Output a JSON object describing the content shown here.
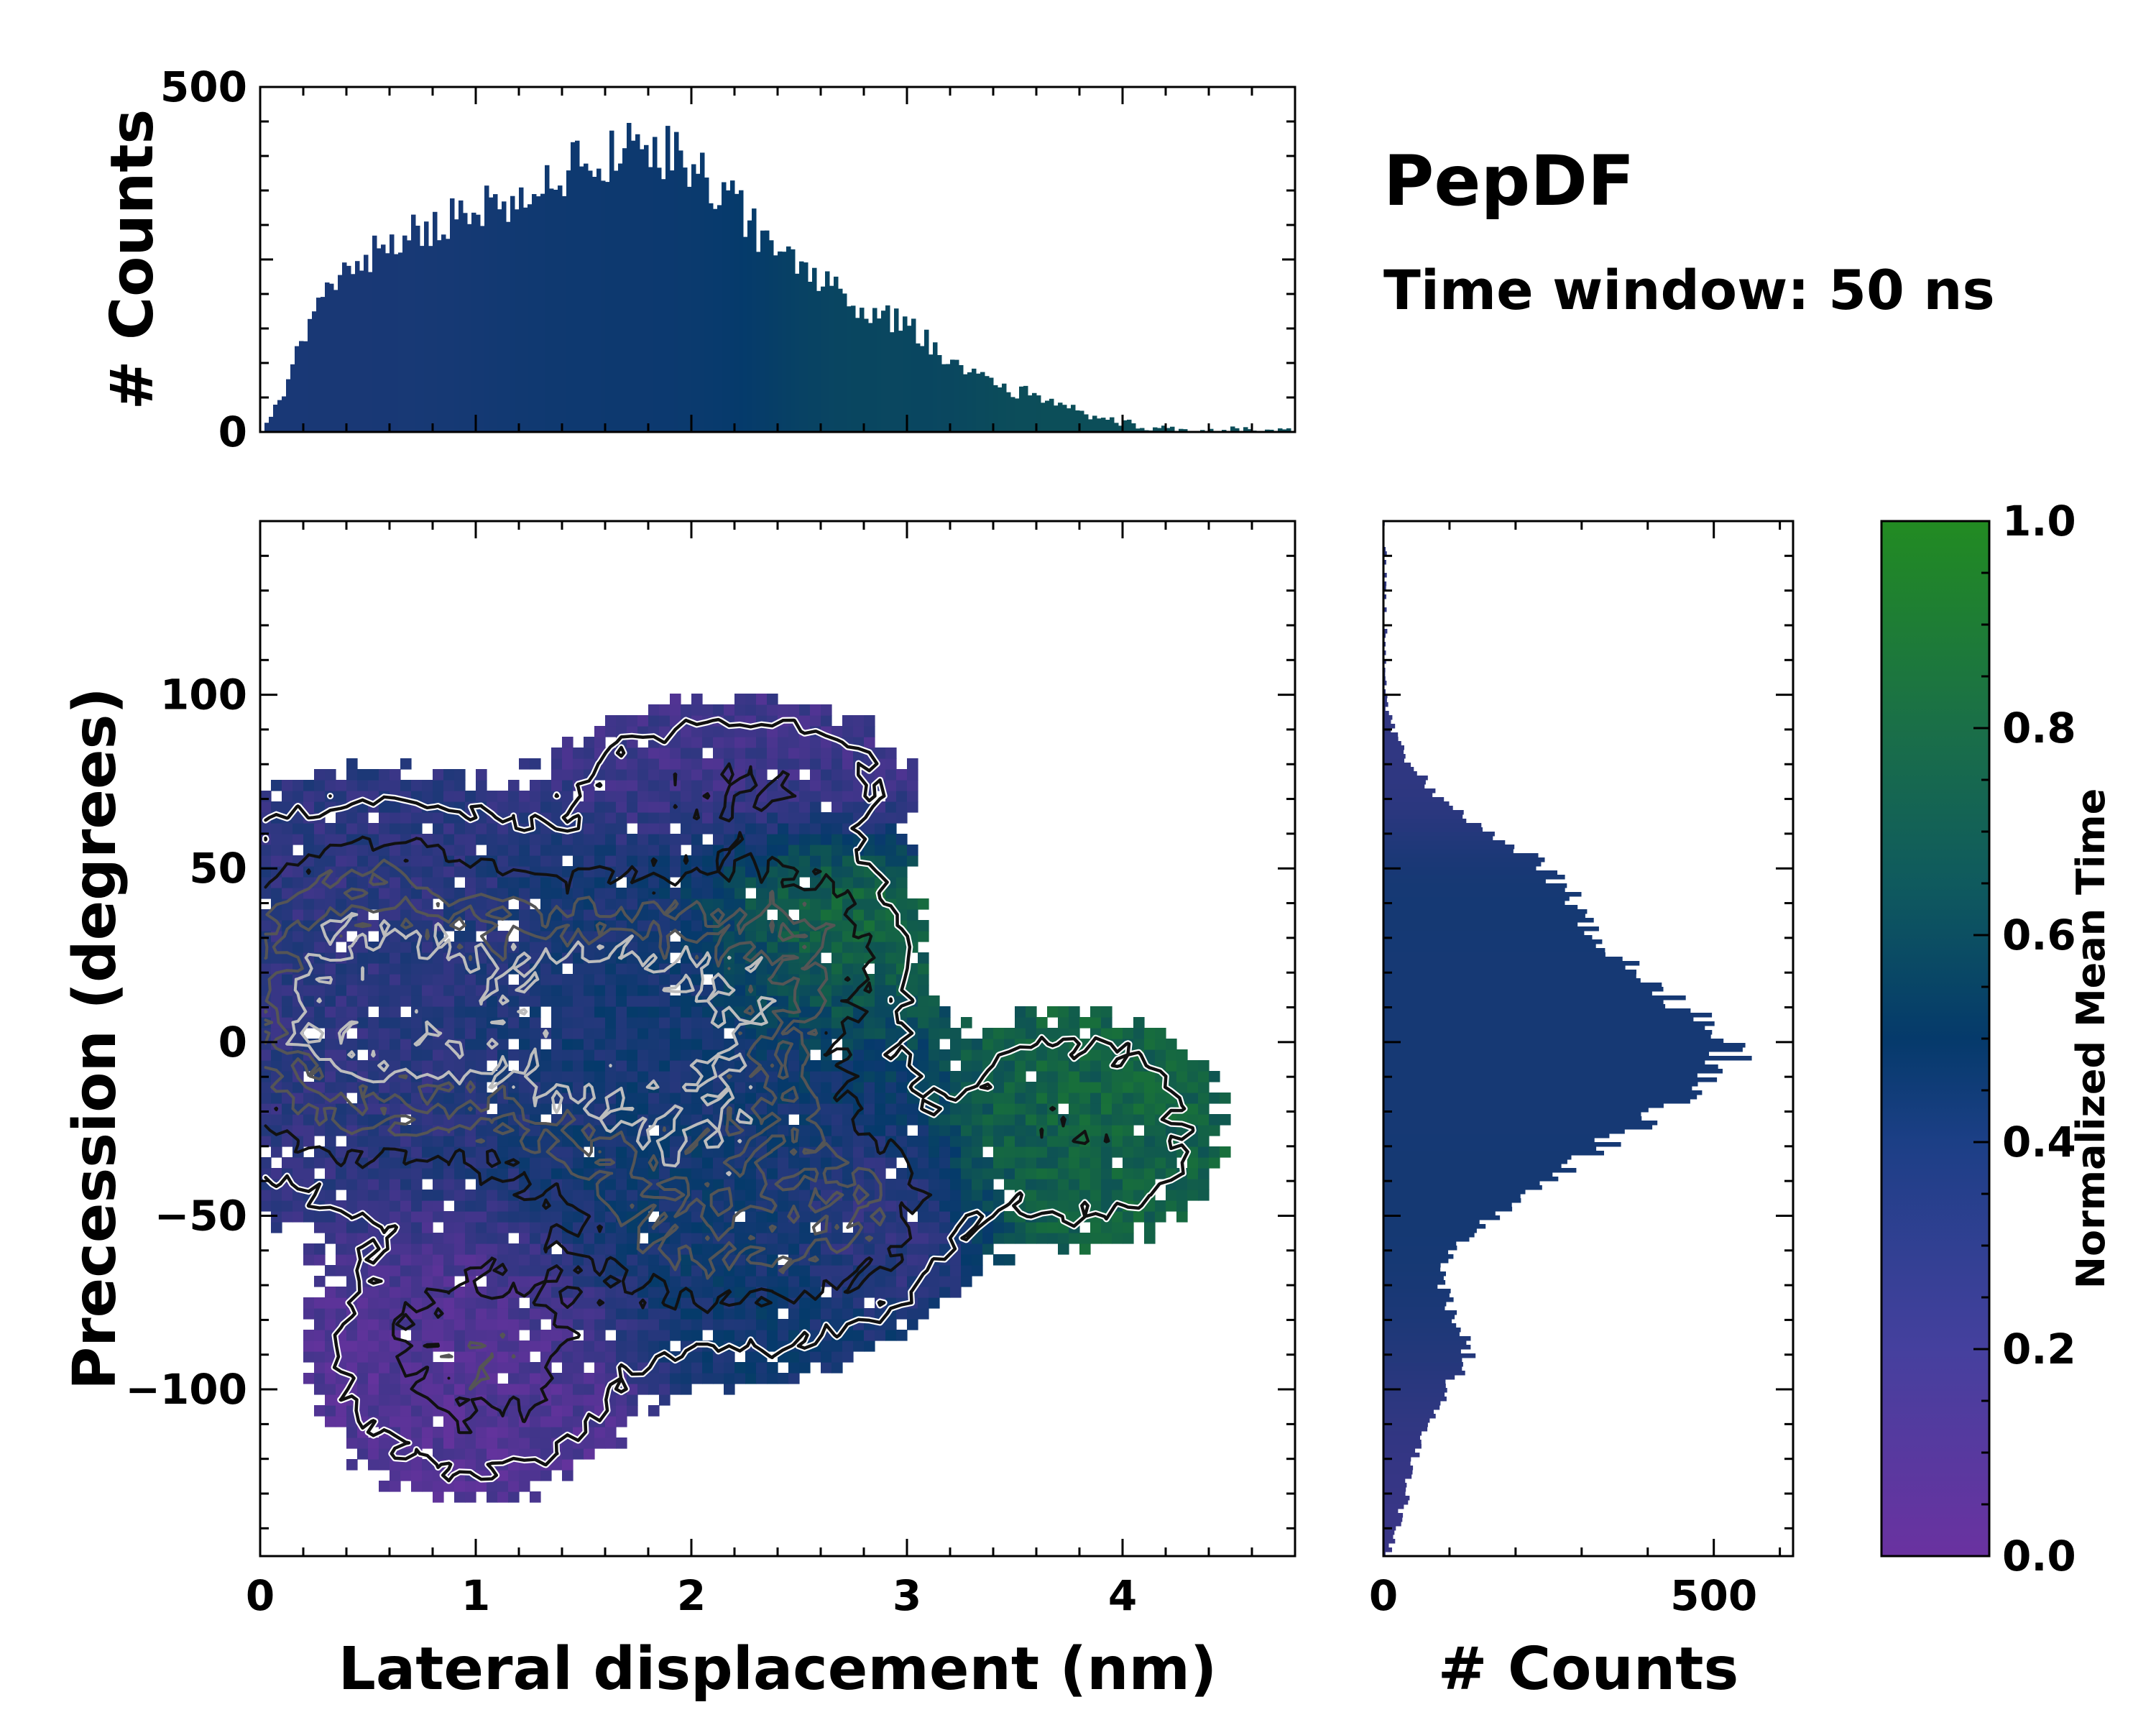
{
  "colors": {
    "colormap_low": "#6a32a0",
    "colormap_mid": "#053a6b",
    "colormap_high": "#228b22",
    "contour_dark": "#111111",
    "contour_mid": "#555555",
    "contour_light": "#bdbdbd",
    "hist_top_fill": "#0d3f6e",
    "hist_right_fill": "#134a73"
  },
  "chart_data": [
    {
      "id": "main-heatmap",
      "type": "heatmap",
      "xlabel": "Lateral displacement (nm)",
      "ylabel": "Precession (degrees)",
      "xlim": [
        0,
        4.8
      ],
      "ylim": [
        -148,
        150
      ],
      "xticks": [
        0,
        1,
        2,
        3,
        4
      ],
      "xtick_labels": [
        "0",
        "1",
        "2",
        "3",
        "4"
      ],
      "yticks": [
        -100,
        -50,
        0,
        50,
        100
      ],
      "ytick_labels": [
        "−100",
        "−50",
        "0",
        "50",
        "100"
      ],
      "grid": false,
      "color_meaning": "Normalized Mean Time",
      "density_components": [
        {
          "x": 0.5,
          "y": 12,
          "sx": 0.45,
          "sy": 28,
          "w": 1.0,
          "t": 0.3
        },
        {
          "x": 1.7,
          "y": 5,
          "sx": 0.5,
          "sy": 25,
          "w": 1.05,
          "t": 0.42
        },
        {
          "x": 2.5,
          "y": 28,
          "sx": 0.3,
          "sy": 18,
          "w": 0.35,
          "t": 0.85
        },
        {
          "x": 2.2,
          "y": -45,
          "sx": 0.5,
          "sy": 25,
          "w": 0.55,
          "t": 0.45
        },
        {
          "x": 1.0,
          "y": -90,
          "sx": 0.4,
          "sy": 22,
          "w": 0.4,
          "t": 0.12
        },
        {
          "x": 3.8,
          "y": -25,
          "sx": 0.4,
          "sy": 20,
          "w": 0.25,
          "t": 0.75
        },
        {
          "x": 2.8,
          "y": -50,
          "sx": 0.25,
          "sy": 14,
          "w": 0.2,
          "t": 0.1
        },
        {
          "x": 2.2,
          "y": 75,
          "sx": 0.5,
          "sy": 14,
          "w": 0.25,
          "t": 0.2
        }
      ],
      "contour_levels": [
        0.12,
        0.28,
        0.45,
        0.62,
        0.8
      ]
    },
    {
      "id": "top-histogram",
      "type": "bar",
      "ylabel": "# Counts",
      "xlim": [
        0,
        4.8
      ],
      "ylim": [
        0,
        500
      ],
      "yticks": [
        0,
        500
      ],
      "ytick_labels": [
        "0",
        "500"
      ],
      "profile_x": [
        0,
        0.1,
        0.2,
        0.3,
        0.4,
        0.6,
        0.8,
        1.0,
        1.2,
        1.4,
        1.6,
        1.8,
        2.0,
        2.2,
        2.4,
        2.6,
        2.8,
        3.0,
        3.2,
        3.4,
        3.6,
        3.8,
        4.0,
        4.2,
        4.4,
        4.6,
        4.8
      ],
      "profile_counts": [
        0,
        50,
        140,
        210,
        230,
        270,
        300,
        320,
        345,
        375,
        400,
        420,
        395,
        330,
        260,
        220,
        175,
        160,
        100,
        70,
        50,
        30,
        12,
        6,
        3,
        1,
        0
      ]
    },
    {
      "id": "right-histogram",
      "type": "bar",
      "orientation": "horizontal",
      "xlabel": "# Counts",
      "xlim": [
        0,
        620
      ],
      "ylim": [
        -148,
        150
      ],
      "xticks": [
        0,
        500
      ],
      "xtick_labels": [
        "0",
        "500"
      ],
      "profile_y": [
        -148,
        -140,
        -130,
        -120,
        -110,
        -100,
        -90,
        -80,
        -70,
        -60,
        -50,
        -40,
        -30,
        -20,
        -10,
        0,
        10,
        20,
        30,
        40,
        50,
        60,
        70,
        80,
        90,
        100
      ],
      "profile_counts": [
        5,
        20,
        35,
        50,
        70,
        100,
        130,
        110,
        90,
        100,
        170,
        250,
        330,
        420,
        500,
        540,
        470,
        390,
        330,
        290,
        250,
        160,
        85,
        40,
        15,
        0
      ]
    },
    {
      "id": "colorbar",
      "type": "colorbar",
      "label": "Normalized Mean Time",
      "range": [
        0.0,
        1.0
      ],
      "ticks": [
        0.0,
        0.2,
        0.4,
        0.6,
        0.8,
        1.0
      ],
      "tick_labels": [
        "0.0",
        "0.2",
        "0.4",
        "0.6",
        "0.8",
        "1.0"
      ]
    }
  ],
  "annotations": {
    "title": "PepDF",
    "subtitle": "Time window: 50 ns"
  }
}
